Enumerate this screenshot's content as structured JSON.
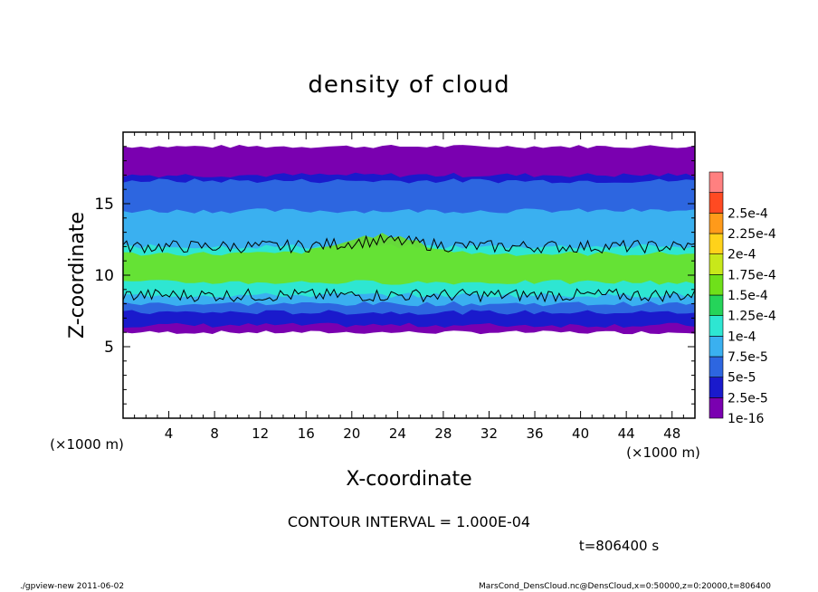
{
  "chart_data": {
    "type": "heatmap",
    "title": "density of cloud",
    "xlabel": "X-coordinate",
    "ylabel": "Z-coordinate",
    "x_unit_label": "(×1000 m)",
    "y_unit_label": "(×1000 m)",
    "xlim": [
      0,
      50
    ],
    "ylim": [
      0,
      20
    ],
    "x_ticks": [
      4,
      8,
      12,
      16,
      20,
      24,
      28,
      32,
      36,
      40,
      44,
      48
    ],
    "y_ticks": [
      5,
      10,
      15
    ],
    "legend_placement": "right",
    "colorbar": {
      "labels": [
        "1e-16",
        "2.5e-5",
        "5e-5",
        "7.5e-5",
        "1e-4",
        "1.25e-4",
        "1.5e-4",
        "1.75e-4",
        "2e-4",
        "2.25e-4",
        "2.5e-4"
      ],
      "colors": [
        "#7a00b0",
        "#1a1acc",
        "#2d66e0",
        "#3ab0f0",
        "#2ee6d2",
        "#25d45a",
        "#6fe01a",
        "#c8e81a",
        "#ffd21a",
        "#ff9a1a",
        "#ff4a22",
        "#ff8080"
      ]
    },
    "bands": [
      {
        "value": "1e-16",
        "zmin": 6.0,
        "zmax": 19.0
      },
      {
        "value": "2.5e-5",
        "zmin": 6.5,
        "zmax": 17.0
      },
      {
        "value": "5e-5",
        "zmin": 7.4,
        "zmax": 16.6
      },
      {
        "value": "7.5e-5",
        "zmin": 8.0,
        "zmax": 14.5
      },
      {
        "value": "1e-4",
        "zmin": 8.6,
        "zmax": 12.0
      },
      {
        "value": "1.5e-4",
        "zmin": 9.5,
        "zmax": 11.5
      }
    ],
    "contour_interval": "CONTOUR INTERVAL = 1.000E-04",
    "time_label": "t=806400 s"
  },
  "footer": {
    "left": "./gpview-new   2011-06-02",
    "right": "MarsCond_DensCloud.nc@DensCloud,x=0:50000,z=0:20000,t=806400"
  }
}
